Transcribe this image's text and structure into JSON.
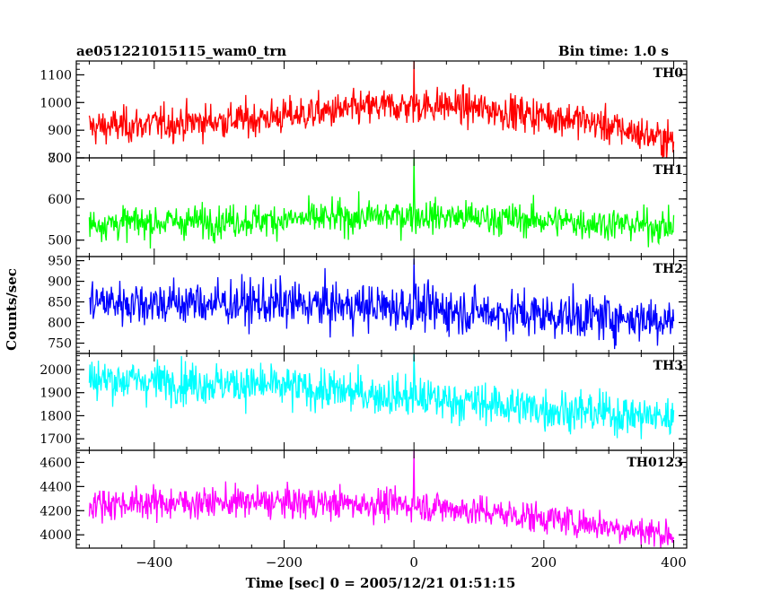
{
  "header": {
    "title": "ae051221015115_wam0_trn",
    "bin_time": "Bin time: 1.0 s"
  },
  "chart_data": {
    "type": "line",
    "xlabel": "Time [sec] 0 = 2005/12/21 01:51:15",
    "ylabel": "Counts/sec",
    "xlim": [
      -520,
      420
    ],
    "xticks": [
      -400,
      -200,
      0,
      200,
      400
    ],
    "xtick_labels": [
      "−400",
      "−200",
      "0",
      "200",
      "400"
    ],
    "x_range": [
      -500,
      400
    ],
    "bin_time": 1.0,
    "panels": [
      {
        "name": "TH0",
        "color": "#ff0000",
        "ylim": [
          800,
          1150
        ],
        "yticks": [
          800,
          900,
          1000,
          1100
        ],
        "baseline": [
          [
            -500,
            910
          ],
          [
            -250,
            940
          ],
          [
            -50,
            985
          ],
          [
            50,
            990
          ],
          [
            250,
            940
          ],
          [
            400,
            860
          ]
        ],
        "noise_sd": 32,
        "spike": {
          "x": 0,
          "value": 1150
        }
      },
      {
        "name": "TH1",
        "color": "#00ff00",
        "ylim": [
          460,
          700
        ],
        "yticks": [
          500,
          600,
          700
        ],
        "baseline": [
          [
            -500,
            540
          ],
          [
            -200,
            550
          ],
          [
            0,
            560
          ],
          [
            200,
            548
          ],
          [
            400,
            532
          ]
        ],
        "noise_sd": 20,
        "spike": {
          "x": 0,
          "value": 700
        }
      },
      {
        "name": "TH2",
        "color": "#0000ff",
        "ylim": [
          725,
          960
        ],
        "yticks": [
          750,
          800,
          850,
          900,
          950
        ],
        "baseline": [
          [
            -500,
            850
          ],
          [
            -200,
            845
          ],
          [
            0,
            835
          ],
          [
            200,
            818
          ],
          [
            400,
            808
          ]
        ],
        "noise_sd": 28,
        "spike": {
          "x": 0,
          "value": 955
        }
      },
      {
        "name": "TH3",
        "color": "#00ffff",
        "ylim": [
          1650,
          2070
        ],
        "yticks": [
          1700,
          1800,
          1900,
          2000
        ],
        "baseline": [
          [
            -500,
            1960
          ],
          [
            -250,
            1935
          ],
          [
            0,
            1880
          ],
          [
            200,
            1830
          ],
          [
            400,
            1790
          ]
        ],
        "noise_sd": 45,
        "spike": {
          "x": 0,
          "value": 2070
        }
      },
      {
        "name": "TH0123",
        "color": "#ff00ff",
        "ylim": [
          3890,
          4700
        ],
        "yticks": [
          4000,
          4200,
          4400,
          4600
        ],
        "baseline": [
          [
            -500,
            4260
          ],
          [
            -250,
            4270
          ],
          [
            0,
            4250
          ],
          [
            200,
            4140
          ],
          [
            400,
            4000
          ]
        ],
        "noise_sd": 65,
        "spike": {
          "x": 0,
          "value": 4700
        }
      }
    ]
  }
}
